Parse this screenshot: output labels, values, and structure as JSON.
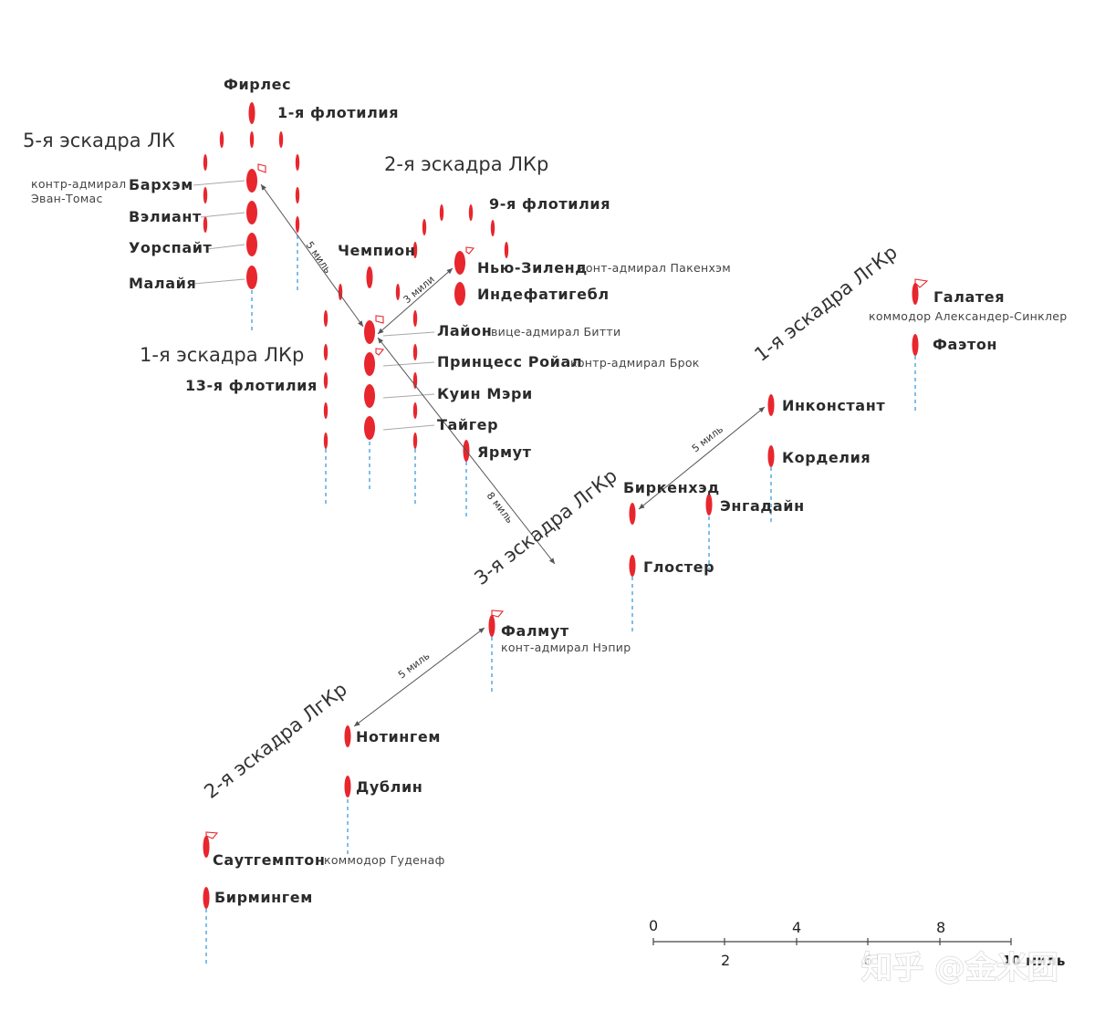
{
  "diagram": {
    "squadrons": {
      "battle_5": "5-я эскадра ЛК",
      "bc_2": "2-я эскадра ЛКр",
      "bc_1": "1-я эскадра ЛКр",
      "lc_1": "1-я эскадра ЛгКр",
      "lc_3": "3-я эскадра ЛгКр",
      "lc_2": "2-я эскадра ЛгКр"
    },
    "flotillas": {
      "f1": "1-я флотилия",
      "f9": "9-я флотилия",
      "f13": "13-я флотилия"
    },
    "ships": {
      "fearless": "Фирлес",
      "barham": "Бархэм",
      "valiant": "Вэлиант",
      "warspite": "Уорспайт",
      "malaya": "Малайя",
      "champion": "Чемпион",
      "new_zealand": "Нью-Зиленд",
      "indefatigable": "Индефатигебл",
      "lion": "Лайон",
      "princess_royal": "Принцесс Ройал",
      "queen_mary": "Куин Мэри",
      "tiger": "Тайгер",
      "yarmouth": "Ярмут",
      "galatea": "Галатея",
      "phaeton": "Фаэтон",
      "inconstant": "Инконстант",
      "cordelia": "Корделия",
      "birkenhead": "Биркенхэд",
      "engadine": "Энгадайн",
      "gloucester": "Глостер",
      "falmouth": "Фалмут",
      "nottingham": "Нотингем",
      "dublin": "Дублин",
      "southampton": "Саутгемптон",
      "birmingham": "Бирмингем"
    },
    "commanders": {
      "evan_thomas_1": "контр-адмирал",
      "evan_thomas_2": "Эван-Томас",
      "pakenham": "конт-адмирал Пакенхэм",
      "beatty": "вице-адмирал Битти",
      "brock": "контр-адмирал Брок",
      "sinclair": "коммодор Александер-Синклер",
      "napier": "конт-адмирал Нэпир",
      "goodenough": "коммодор Гуденаф"
    },
    "distances": {
      "barham_lion": "5 миль",
      "lion_nz": "3 мили",
      "lion_lc3": "8 миль",
      "birkenhead_inconstant": "5 миль",
      "falmouth_nottingham": "5 миль"
    },
    "scale": {
      "ticks_top": [
        "0",
        "4",
        "8"
      ],
      "ticks_bottom": [
        "2",
        "6"
      ],
      "end_label": "10 миль"
    },
    "watermark": "知乎 @金米团",
    "colors": {
      "ship": "#e8262d",
      "wake": "#3d9be0",
      "text": "#2b2b2b"
    }
  }
}
